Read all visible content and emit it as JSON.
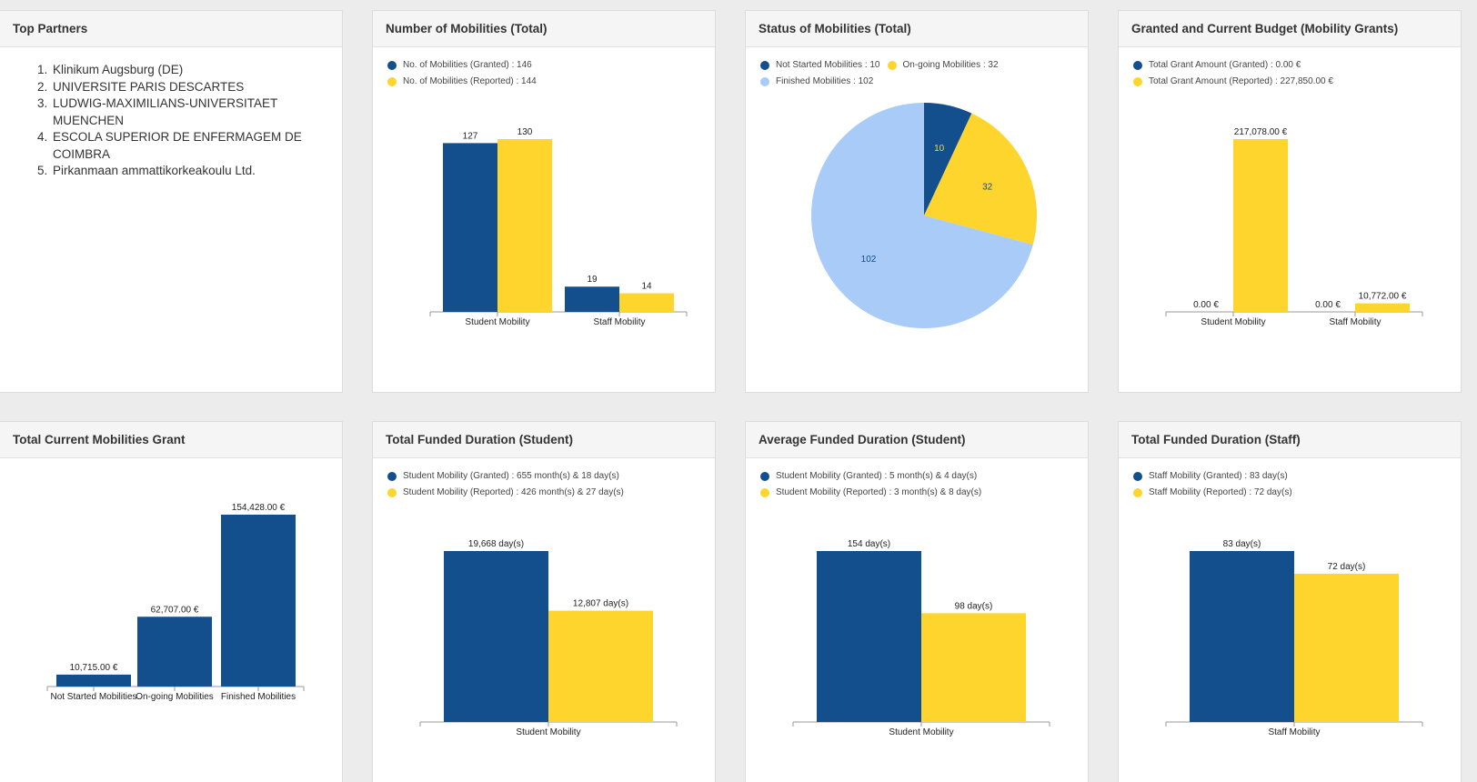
{
  "colors": {
    "granted": "#134f8c",
    "reported": "#fdd52c",
    "finished": "#a9cbf8",
    "axis": "#9a9a9a"
  },
  "panels": {
    "top_partners": {
      "title": "Top Partners",
      "items": [
        "Klinikum Augsburg (DE)",
        "UNIVERSITE PARIS DESCARTES",
        "LUDWIG-MAXIMILIANS-UNIVERSITAET MUENCHEN",
        "ESCOLA SUPERIOR DE ENFERMAGEM DE COIMBRA",
        "Pirkanmaan ammattikorkeakoulu Ltd."
      ]
    },
    "num_mobilities": {
      "title": "Number of Mobilities (Total)",
      "legend": [
        "No. of Mobilities (Granted) : 146",
        "No. of Mobilities (Reported) : 144"
      ]
    },
    "status_mobilities": {
      "title": "Status of Mobilities (Total)",
      "legend": [
        "Not Started Mobilities : 10",
        "On-going Mobilities : 32",
        "Finished Mobilities : 102"
      ]
    },
    "budget": {
      "title": "Granted and Current Budget (Mobility Grants)",
      "legend": [
        "Total Grant Amount (Granted) : 0.00 €",
        "Total Grant Amount (Reported) : 227,850.00 €"
      ]
    },
    "current_grant": {
      "title": "Total Current Mobilities Grant"
    },
    "funded_student": {
      "title": "Total Funded Duration (Student)",
      "legend": [
        "Student Mobility (Granted) : 655 month(s) & 18 day(s)",
        "Student Mobility (Reported) : 426 month(s) & 27 day(s)"
      ]
    },
    "avg_student": {
      "title": "Average Funded Duration (Student)",
      "legend": [
        "Student Mobility (Granted) : 5 month(s) & 4 day(s)",
        "Student Mobility (Reported) : 3 month(s) & 8 day(s)"
      ]
    },
    "funded_staff": {
      "title": "Total Funded Duration (Staff)",
      "legend": [
        "Staff Mobility (Granted) : 83 day(s)",
        "Staff Mobility (Reported) : 72 day(s)"
      ]
    }
  },
  "chart_data": [
    {
      "id": "num_mobilities",
      "type": "bar",
      "categories": [
        "Student Mobility",
        "Staff Mobility"
      ],
      "series": [
        {
          "name": "No. of Mobilities (Granted)",
          "values": [
            127,
            19
          ],
          "labels": [
            "127",
            "19"
          ]
        },
        {
          "name": "No. of Mobilities (Reported)",
          "values": [
            130,
            14
          ],
          "labels": [
            "130",
            "14"
          ]
        }
      ],
      "ylim": [
        0,
        130
      ]
    },
    {
      "id": "status_mobilities",
      "type": "pie",
      "slices": [
        {
          "name": "Not Started Mobilities",
          "value": 10,
          "label": "10"
        },
        {
          "name": "On-going Mobilities",
          "value": 32,
          "label": "32"
        },
        {
          "name": "Finished Mobilities",
          "value": 102,
          "label": "102"
        }
      ]
    },
    {
      "id": "budget",
      "type": "bar",
      "categories": [
        "Student Mobility",
        "Staff Mobility"
      ],
      "series": [
        {
          "name": "Total Grant Amount (Granted)",
          "values": [
            0,
            0
          ],
          "labels": [
            "0.00 €",
            "0.00 €"
          ]
        },
        {
          "name": "Total Grant Amount (Reported)",
          "values": [
            217078,
            10772
          ],
          "labels": [
            "217,078.00 €",
            "10,772.00 €"
          ]
        }
      ],
      "ylim": [
        0,
        217078
      ]
    },
    {
      "id": "current_grant",
      "type": "bar",
      "categories": [
        "Not Started Mobilities",
        "On-going Mobilities",
        "Finished Mobilities"
      ],
      "series": [
        {
          "name": "",
          "values": [
            10715,
            62707,
            154428
          ],
          "labels": [
            "10,715.00 €",
            "62,707.00 €",
            "154,428.00 €"
          ]
        }
      ],
      "ylim": [
        0,
        154428
      ]
    },
    {
      "id": "funded_student",
      "type": "bar",
      "categories": [
        "Student Mobility"
      ],
      "series": [
        {
          "name": "Student Mobility (Granted)",
          "values": [
            19668
          ],
          "labels": [
            "19,668 day(s)"
          ]
        },
        {
          "name": "Student Mobility (Reported)",
          "values": [
            12807
          ],
          "labels": [
            "12,807 day(s)"
          ]
        }
      ],
      "ylim": [
        0,
        19668
      ]
    },
    {
      "id": "avg_student",
      "type": "bar",
      "categories": [
        "Student Mobility"
      ],
      "series": [
        {
          "name": "Student Mobility (Granted)",
          "values": [
            154
          ],
          "labels": [
            "154 day(s)"
          ]
        },
        {
          "name": "Student Mobility (Reported)",
          "values": [
            98
          ],
          "labels": [
            "98 day(s)"
          ]
        }
      ],
      "ylim": [
        0,
        154
      ]
    },
    {
      "id": "funded_staff",
      "type": "bar",
      "categories": [
        "Staff Mobility"
      ],
      "series": [
        {
          "name": "Staff Mobility (Granted)",
          "values": [
            83
          ],
          "labels": [
            "83 day(s)"
          ]
        },
        {
          "name": "Staff Mobility (Reported)",
          "values": [
            72
          ],
          "labels": [
            "72 day(s)"
          ]
        }
      ],
      "ylim": [
        0,
        83
      ]
    }
  ]
}
